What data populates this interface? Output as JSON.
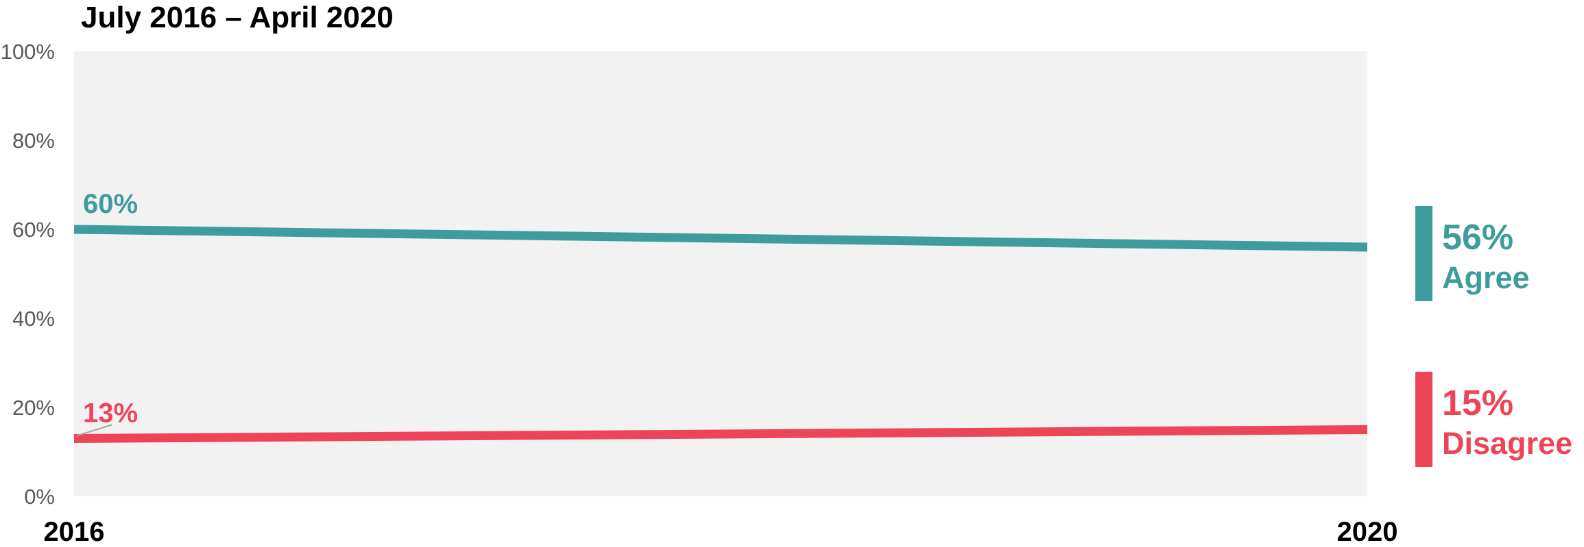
{
  "chart_data": {
    "type": "line",
    "title": "July 2016 –  April 2020",
    "x": [
      "2016",
      "2020"
    ],
    "xlabel": "",
    "ylabel": "",
    "ylim": [
      0,
      100
    ],
    "yticks": [
      "0%",
      "20%",
      "40%",
      "60%",
      "80%",
      "100%"
    ],
    "series": [
      {
        "name": "Agree",
        "values": [
          60,
          56
        ],
        "color": "#3f9c9c",
        "start_label": "60%",
        "end_label": "56%"
      },
      {
        "name": "Disagree",
        "values": [
          13,
          15
        ],
        "color": "#ee4458",
        "start_label": "13%",
        "end_label": "15%"
      }
    ],
    "plot_background": "#f2f2f2",
    "grid": false,
    "legend": "right"
  }
}
